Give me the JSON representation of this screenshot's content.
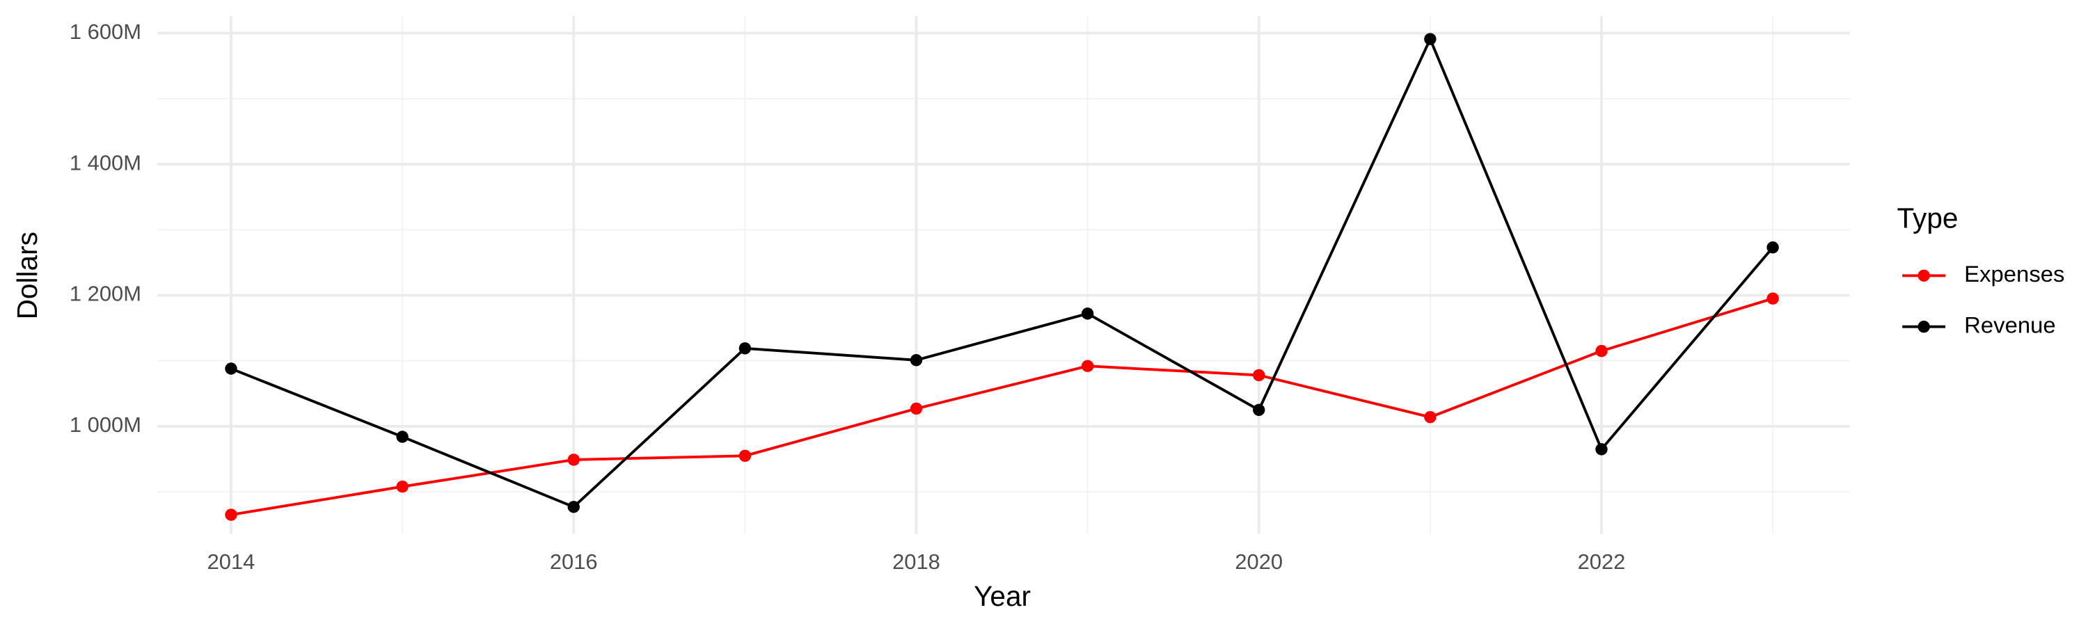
{
  "chart_data": {
    "type": "line",
    "x_label": "Year",
    "y_label": "Dollars",
    "x": [
      2014,
      2015,
      2016,
      2017,
      2018,
      2019,
      2020,
      2021,
      2022,
      2023
    ],
    "series": [
      {
        "name": "Expenses",
        "color": "#ff0000",
        "values": [
          865,
          908,
          949,
          955,
          1027,
          1092,
          1078,
          1014,
          1115,
          1195
        ]
      },
      {
        "name": "Revenue",
        "color": "#000000",
        "values": [
          1088,
          984,
          877,
          1119,
          1101,
          1172,
          1025,
          1591,
          965,
          1273
        ]
      }
    ],
    "xlim": [
      2013.57,
      2023.45
    ],
    "xticks": [
      2014,
      2016,
      2018,
      2020,
      2022
    ],
    "ylim": [
      836,
      1626
    ],
    "yticks": [
      {
        "value": 1000,
        "label": "1 000M"
      },
      {
        "value": 1200,
        "label": "1 200M"
      },
      {
        "value": 1400,
        "label": "1 400M"
      },
      {
        "value": 1600,
        "label": "1 600M"
      }
    ],
    "grid": true,
    "legend_title": "Type",
    "legend_position": "right"
  }
}
